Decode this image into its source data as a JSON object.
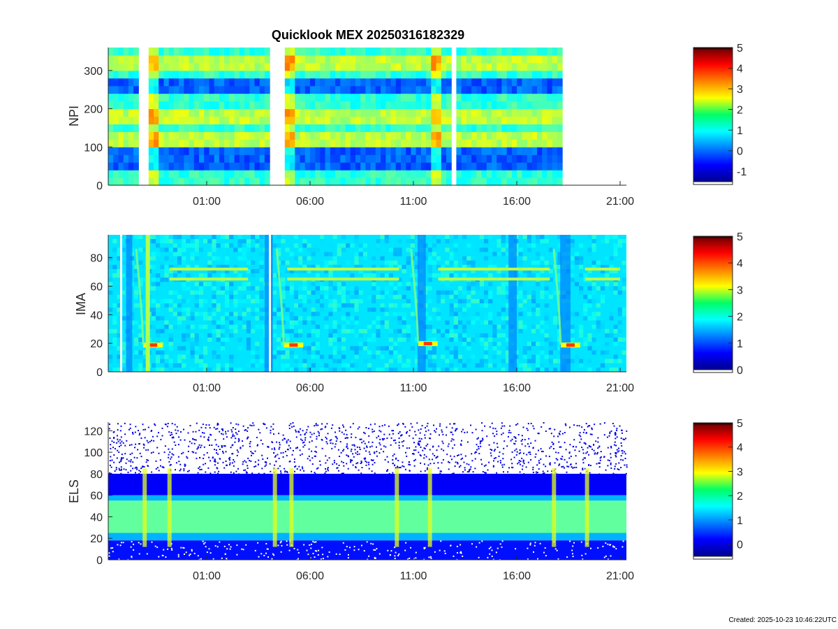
{
  "figure": {
    "title": "Quicklook MEX 20250316182329",
    "footer": "Created: 2025-10-23 10:46:22UTC"
  },
  "chart_data": [
    {
      "type": "heatmap",
      "ylabel": "NPI",
      "ylim": [
        0,
        360
      ],
      "y_ticks": [
        "0",
        "100",
        "200",
        "300"
      ],
      "x_ticks": [
        "01:00",
        "06:00",
        "11:00",
        "16:00",
        "21:00"
      ],
      "colorbar": {
        "range": [
          -1.5,
          5
        ],
        "ticks": [
          "-1",
          "0",
          "1",
          "2",
          "3",
          "4",
          "5"
        ]
      },
      "data_gaps_hours": [
        [
          -2.3,
          -2.05
        ],
        [
          3.85,
          4.6
        ],
        [
          12.7,
          13.0
        ],
        [
          18.2,
          20.9
        ]
      ],
      "bright_bands_y": [
        [
          100,
          140
        ],
        [
          170,
          200
        ],
        [
          300,
          330
        ]
      ],
      "dark_bands_y": [
        [
          230,
          280
        ],
        [
          40,
          95
        ]
      ]
    },
    {
      "type": "heatmap",
      "ylabel": "IMA",
      "ylim": [
        0,
        96
      ],
      "y_ticks": [
        "0",
        "20",
        "40",
        "60",
        "80"
      ],
      "x_ticks": [
        "01:00",
        "06:00",
        "11:00",
        "16:00",
        "21:00"
      ],
      "colorbar": {
        "range": [
          0,
          5
        ],
        "ticks": [
          "0",
          "1",
          "2",
          "3",
          "4",
          "5"
        ]
      },
      "ion_lines_y": [
        65,
        72
      ],
      "low_energy_peaks": [
        {
          "hour": -1.6,
          "y": 19
        },
        {
          "hour": 5.2,
          "y": 19
        },
        {
          "hour": 11.7,
          "y": 20
        },
        {
          "hour": 18.6,
          "y": 19
        }
      ]
    },
    {
      "type": "heatmap",
      "ylabel": "ELS",
      "ylim": [
        0,
        128
      ],
      "y_ticks": [
        "0",
        "20",
        "40",
        "60",
        "80",
        "100",
        "120"
      ],
      "x_ticks": [
        "01:00",
        "06:00",
        "11:00",
        "16:00",
        "21:00"
      ],
      "colorbar": {
        "range": [
          -0.5,
          5
        ],
        "ticks": [
          "0",
          "1",
          "2",
          "3",
          "4",
          "5"
        ]
      },
      "main_band_y": [
        25,
        55
      ],
      "noise_above_y": 80
    }
  ]
}
